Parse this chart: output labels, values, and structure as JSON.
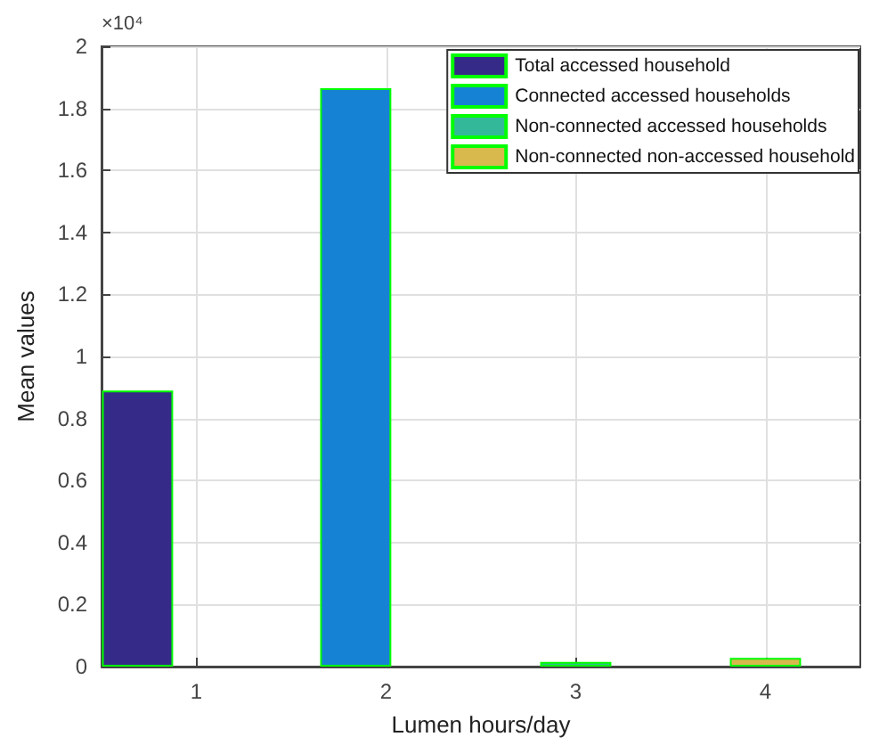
{
  "chart_data": {
    "type": "bar",
    "xlabel": "Lumen hours/day",
    "ylabel": "Mean values",
    "annotations": [
      "×10⁴"
    ],
    "xlim": [
      0.5,
      4.5
    ],
    "xticks": [
      1,
      2,
      3,
      4
    ],
    "ylim": [
      0,
      2
    ],
    "yticks": [
      0,
      0.2,
      0.4,
      0.6,
      0.8,
      1,
      1.2,
      1.4,
      1.6,
      1.8,
      2
    ],
    "series": [
      {
        "name": "Total accessed household",
        "color": "#352a87",
        "x": [
          0.69
        ],
        "values": [
          0.89
        ]
      },
      {
        "name": "Connected accessed households",
        "color": "#1582d4",
        "x": [
          1.84
        ],
        "values": [
          1.865
        ]
      },
      {
        "name": "Non-connected accessed households",
        "color": "#33b89a",
        "x": [
          3
        ],
        "values": [
          0.015
        ]
      },
      {
        "name": "Non-connected non-accessed household",
        "color": "#d8b94e",
        "x": [
          4
        ],
        "values": [
          0.028
        ]
      }
    ],
    "grid": true,
    "legend": "top right"
  }
}
